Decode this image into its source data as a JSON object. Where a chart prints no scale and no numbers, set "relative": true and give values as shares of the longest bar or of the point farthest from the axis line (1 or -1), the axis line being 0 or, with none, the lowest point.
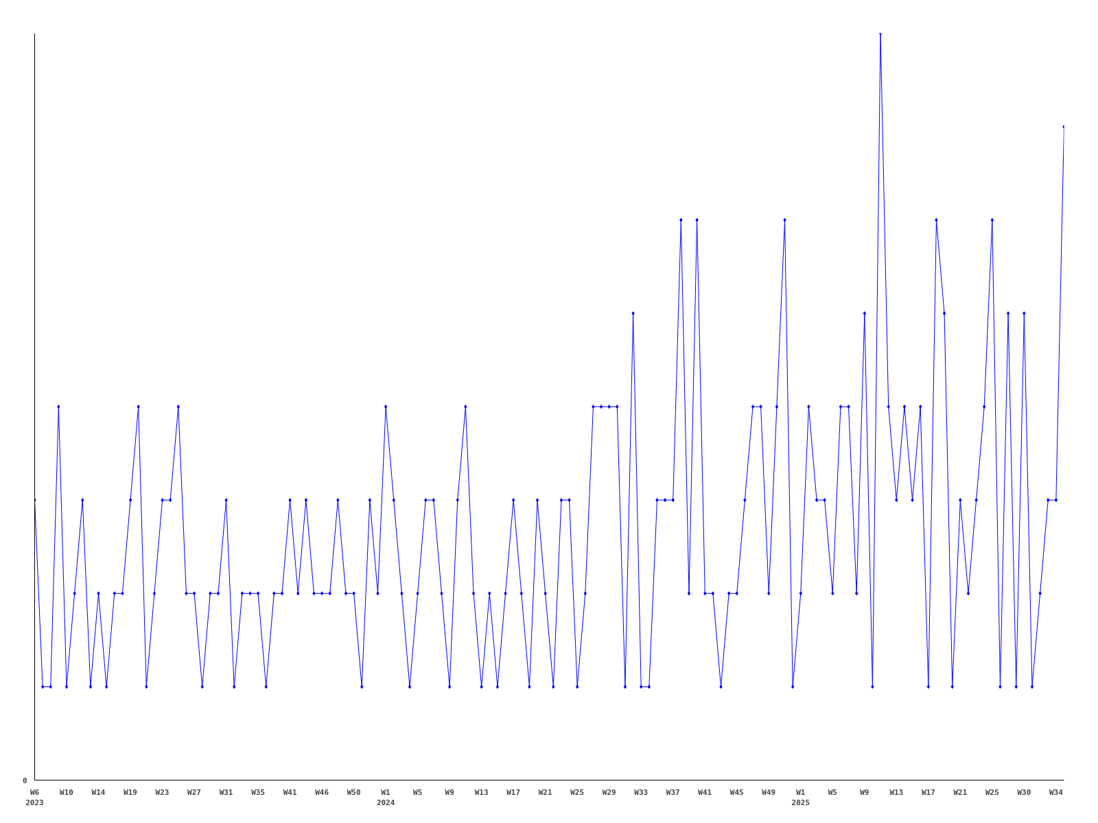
{
  "chart_data": {
    "type": "line",
    "relative": true,
    "marker": "diamond",
    "grid": false,
    "annotations": [
      "0"
    ],
    "categories": [
      "W6\n2023",
      null,
      null,
      null,
      "W10",
      null,
      null,
      null,
      "W14",
      null,
      null,
      null,
      "W19",
      null,
      null,
      null,
      "W23",
      null,
      null,
      null,
      "W27",
      null,
      null,
      null,
      "W31",
      null,
      null,
      null,
      "W35",
      null,
      null,
      null,
      "W41",
      null,
      null,
      null,
      "W46",
      null,
      null,
      null,
      "W50",
      null,
      null,
      null,
      "W1\n2024",
      null,
      null,
      null,
      "W5",
      null,
      null,
      null,
      "W9",
      null,
      null,
      null,
      "W13",
      null,
      null,
      null,
      "W17",
      null,
      null,
      null,
      "W21",
      null,
      null,
      null,
      "W25",
      null,
      null,
      null,
      "W29",
      null,
      null,
      null,
      "W33",
      null,
      null,
      null,
      "W37",
      null,
      null,
      null,
      "W41",
      null,
      null,
      null,
      "W45",
      null,
      null,
      null,
      "W49",
      null,
      null,
      null,
      "W1\n2025",
      null,
      null,
      null,
      "W5",
      null,
      null,
      null,
      "W9",
      null,
      null,
      null,
      "W13",
      null,
      null,
      null,
      "W17",
      null,
      null,
      null,
      "W21",
      null,
      null,
      null,
      "W25",
      null,
      null,
      null,
      "W30",
      null,
      null,
      null,
      "W34",
      null
    ],
    "series": [
      {
        "color": "#0000ff",
        "values": [
          0.375,
          0.125,
          0.125,
          0.5,
          0.125,
          0.25,
          0.375,
          0.125,
          0.25,
          0.125,
          0.25,
          0.25,
          0.375,
          0.5,
          0.125,
          0.25,
          0.375,
          0.375,
          0.5,
          0.25,
          0.25,
          0.125,
          0.25,
          0.25,
          0.375,
          0.125,
          0.25,
          0.25,
          0.25,
          0.125,
          0.25,
          0.25,
          0.375,
          0.25,
          0.375,
          0.25,
          0.25,
          0.25,
          0.375,
          0.25,
          0.25,
          0.125,
          0.375,
          0.25,
          0.5,
          0.375,
          0.25,
          0.125,
          0.25,
          0.375,
          0.375,
          0.25,
          0.125,
          0.375,
          0.5,
          0.25,
          0.125,
          0.25,
          0.125,
          0.25,
          0.375,
          0.25,
          0.125,
          0.375,
          0.25,
          0.125,
          0.375,
          0.375,
          0.125,
          0.25,
          0.5,
          0.5,
          0.5,
          0.5,
          0.125,
          0.625,
          0.125,
          0.125,
          0.375,
          0.375,
          0.375,
          0.75,
          0.25,
          0.75,
          0.25,
          0.25,
          0.125,
          0.25,
          0.25,
          0.375,
          0.5,
          0.5,
          0.25,
          0.5,
          0.75,
          0.125,
          0.25,
          0.5,
          0.375,
          0.375,
          0.25,
          0.5,
          0.5,
          0.25,
          0.625,
          0.125,
          1,
          0.5,
          0.375,
          0.5,
          0.375,
          0.5,
          0.125,
          0.75,
          0.625,
          0.125,
          0.375,
          0.25,
          0.375,
          0.5,
          0.75,
          0.125,
          0.625,
          0.125,
          0.625,
          0.125,
          0.25,
          0.375,
          0.375,
          0.875
        ]
      }
    ]
  }
}
